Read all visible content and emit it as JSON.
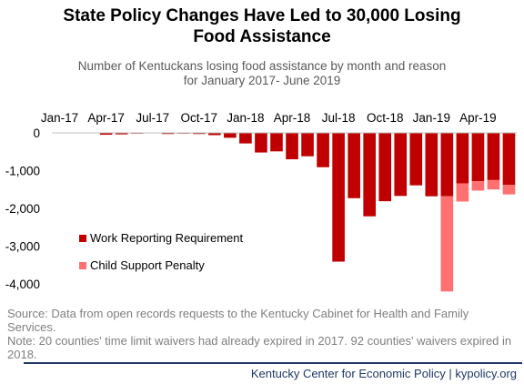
{
  "title_line1": "State Policy Changes Have Led to 30,000 Losing",
  "title_line2": "Food Assistance",
  "subtitle_line1": "Number  of Kentuckans losing food assistance by month and reason",
  "subtitle_line2": "for January 2017- June 2019",
  "source_line1": "Source: Data from open records requests to the Kentucky Cabinet for Health and Family Services.",
  "source_line2": "Note: 20 counties' time limit waivers had already expired in 2017. 92 counties' waivers expired in 2018.",
  "footer": "Kentucky Center for Economic Policy | kypolicy.org",
  "colors": {
    "work": "#c00000",
    "child": "#ff7070",
    "text": "#000000",
    "grid": "#d9d9d9"
  },
  "chart_data": {
    "type": "bar",
    "stacked": true,
    "categories": [
      "Jan-17",
      "Feb-17",
      "Mar-17",
      "Apr-17",
      "May-17",
      "Jun-17",
      "Jul-17",
      "Aug-17",
      "Sep-17",
      "Oct-17",
      "Nov-17",
      "Dec-17",
      "Jan-18",
      "Feb-18",
      "Mar-18",
      "Apr-18",
      "May-18",
      "Jun-18",
      "Jul-18",
      "Aug-18",
      "Sep-18",
      "Oct-18",
      "Nov-18",
      "Dec-18",
      "Jan-19",
      "Feb-19",
      "Mar-19",
      "Apr-19",
      "May-19",
      "Jun-19"
    ],
    "tick_labels": [
      "Jan-17",
      "Apr-17",
      "Jul-17",
      "Oct-17",
      "Jan-18",
      "Apr-18",
      "Jul-18",
      "Oct-18",
      "Jan-19",
      "Apr-19"
    ],
    "tick_every": 3,
    "ylim": [
      -4000,
      0
    ],
    "yticks": [
      0,
      -1000,
      -2000,
      -3000,
      -4000
    ],
    "ytick_labels": [
      "0",
      "-1,000",
      "-2,000",
      "-3,000",
      "-4,000"
    ],
    "legend_position": "lower-left",
    "series": [
      {
        "name": "Work Reporting Requirement",
        "color": "#c00000",
        "values": [
          0,
          -5,
          -5,
          -50,
          -40,
          -20,
          0,
          -30,
          -20,
          -30,
          -60,
          -130,
          -280,
          -520,
          -490,
          -700,
          -620,
          -910,
          -3410,
          -1730,
          -2210,
          -1810,
          -1670,
          -1390,
          -1680,
          -1680,
          -1340,
          -1280,
          -1250,
          -1380
        ]
      },
      {
        "name": "Child Support Penalty",
        "color": "#ff7070",
        "values": [
          0,
          0,
          0,
          0,
          0,
          0,
          0,
          0,
          0,
          0,
          0,
          0,
          0,
          0,
          0,
          0,
          0,
          0,
          0,
          0,
          0,
          0,
          0,
          0,
          0,
          -2520,
          -480,
          -250,
          -250,
          -250
        ]
      }
    ]
  }
}
